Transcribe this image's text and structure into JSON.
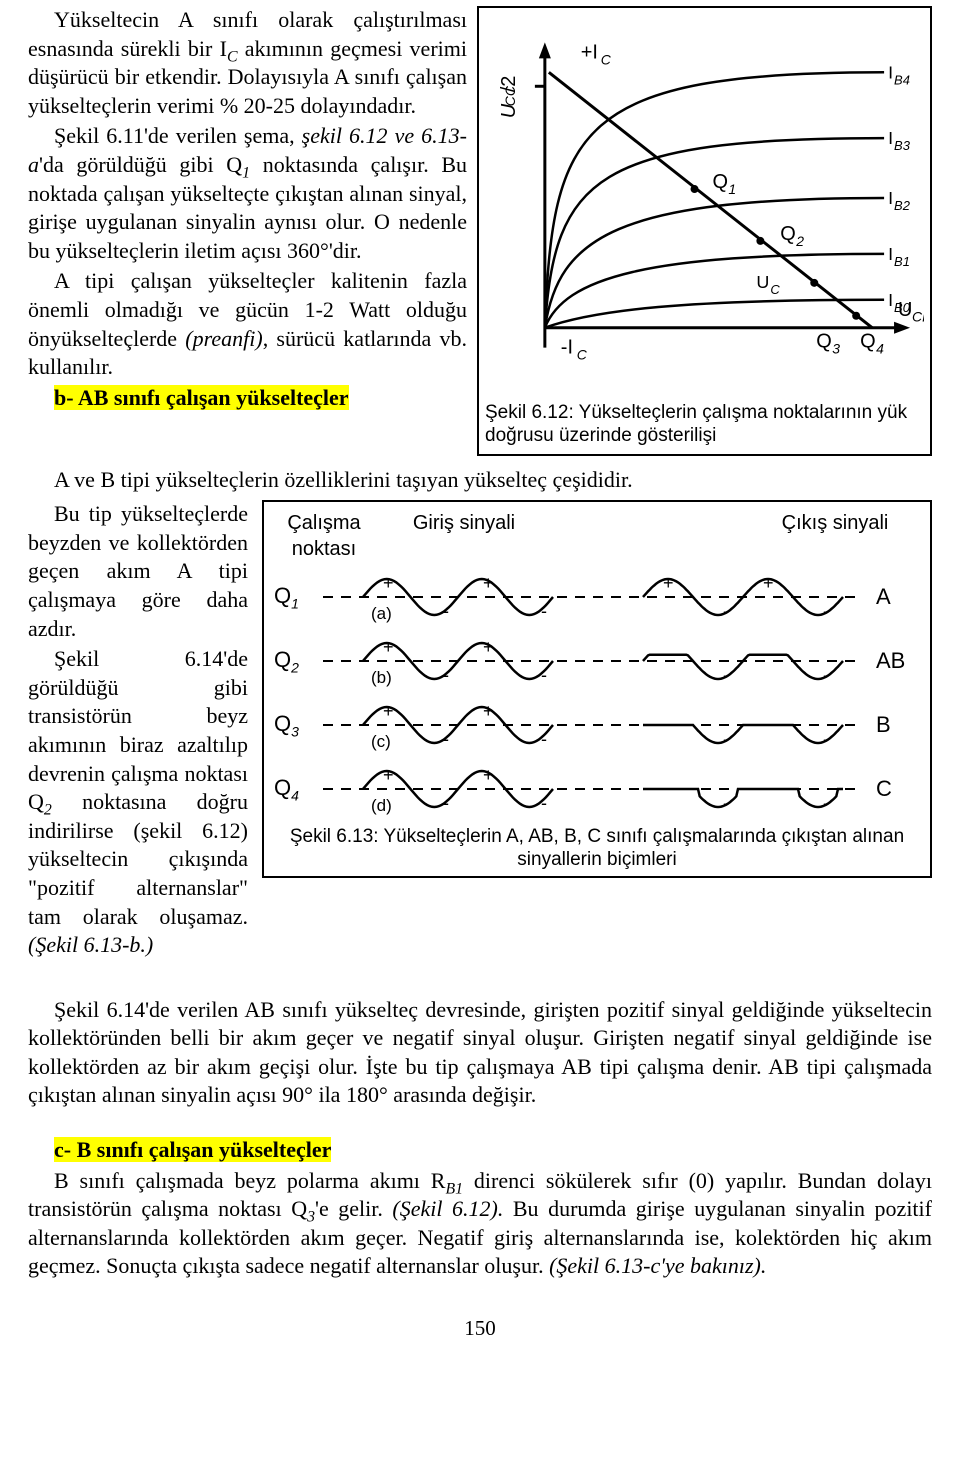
{
  "text": {
    "p1": "Yükseltecin A sınıfı olarak çalıştırılması esnasında sürekli bir I",
    "p1s": "C",
    "p1b": " akımının geçmesi verimi düşürücü bir etkendir. Dolayısıyla A sınıfı çalışan yükselteçlerin verimi % 20-25 dolayındadır.",
    "p2": "Şekil 6.11'de verilen şema, ",
    "p2i": "şekil 6.12 ve 6.13-a",
    "p2b": "'da görüldüğü gibi Q",
    "p2s": "1",
    "p2c": " noktasında çalışır. Bu noktada çalışan yükselteçte çıkıştan alınan sinyal, girişe uygulanan sinyalin aynısı olur. O nedenle bu yükselteçlerin iletim açısı 360°'dir.",
    "p3": "A tipi çalışan yükselteçler kalitenin fazla önemli olmadığı ve gücün 1-2 Watt olduğu önyükselteçlerde ",
    "p3i": "(preanfi)",
    "p3b": ", sürücü katlarında vb. kullanılır.",
    "h1": "b- AB sınıfı çalışan yükselteçler",
    "p4": "A ve B tipi yükselteçlerin özelliklerini taşıyan yükselteç çeşididir.",
    "p5": "Bu tip yükselteçlerde beyzden ve kollektörden geçen akım A tipi çalışmaya göre daha azdır.",
    "p6a": "Şekil 6.14'de görüldüğü gibi transistörün beyz akımının biraz azaltılıp devrenin çalışma noktası Q",
    "p6s": "2",
    "p6b": " noktasına doğru indirilirse (şekil 6.12) yükseltecin çıkışında \"pozitif alternanslar\" tam olarak oluşamaz. ",
    "p6i": "(Şekil 6.13-b.)",
    "p7a": "Şekil 6.14'de verilen AB sınıfı yükselteç devresinde, girişten pozitif sinyal geldiğinde yükseltecin kollektöründen belli bir akım geçer ve negatif sinyal oluşur. Girişten negatif sinyal geldiğinde ise kollektörden az bir akım geçişi olur. İşte bu tip çalışmaya AB tipi çalışma denir. AB tipi çalışmada çıkıştan alınan sinyalin açısı 90° ila 180° arasında değişir.",
    "h2": "c- B sınıfı çalışan yükselteçler",
    "p8a": "B sınıfı çalışmada beyz polarma akımı R",
    "p8s": "B1",
    "p8b": " direnci sökülerek sıfır (0) yapılır. Bundan dolayı transistörün çalışma noktası Q",
    "p8s2": "3",
    "p8c": "'e gelir. ",
    "p8i": "(Şekil 6.12).",
    "p8d": " Bu durumda girişe uygulanan sinyalin pozitif alternanslarında kollektörden akım geçer. Negatif giriş alternanslarında ise, kolektörden hiç akım geçmez. Sonuçta çıkışta sadece negatif alternanslar oluşur. ",
    "p8i2": "(Şekil 6.13-c'ye bakınız).",
    "pagenum": "150"
  },
  "fig612": {
    "y_label": "U",
    "y_label_sub": "CC",
    "y_label_suffix": "/2",
    "top_label": "+I",
    "top_label_sub": "C",
    "bottom_label": "-I",
    "bottom_label_sub": "C",
    "x_label": "U",
    "x_label_sub": "CE",
    "uc_label": "U",
    "uc_sub": "C",
    "q_labels": [
      "Q",
      "Q",
      "Q",
      "Q"
    ],
    "q_subs": [
      "1",
      "2",
      "3",
      "4"
    ],
    "ib_labels": [
      "I",
      "I",
      "I",
      "I",
      "I"
    ],
    "ib_subs": [
      "B4",
      "B3",
      "B2",
      "B1",
      "B0"
    ],
    "caption": "Şekil 6.12: Yükselteçlerin çalışma noktalarının yük doğrusu üzerinde gösterilişi",
    "colors": {
      "stroke": "#000000",
      "bg": "#ffffff",
      "fill": "#000000"
    },
    "line_width": 2
  },
  "fig613": {
    "headers": {
      "col1": "Çalışma noktası",
      "col2": "Giriş sinyali",
      "col3": "Çıkış sinyali"
    },
    "rows": [
      {
        "q": "Q",
        "qsub": "1",
        "letter": "(a)",
        "class": "A",
        "out_type": "full"
      },
      {
        "q": "Q",
        "qsub": "2",
        "letter": "(b)",
        "class": "AB",
        "out_type": "ab"
      },
      {
        "q": "Q",
        "qsub": "3",
        "letter": "(c)",
        "class": "B",
        "out_type": "half"
      },
      {
        "q": "Q",
        "qsub": "4",
        "letter": "(d)",
        "class": "C",
        "out_type": "c"
      }
    ],
    "caption": "Şekil 6.13: Yükselteçlerin A, AB, B, C sınıfı çalışmalarında çıkıştan alınan sinyallerin biçimleri",
    "colors": {
      "stroke": "#000000",
      "dash": "#000000"
    },
    "plus": "+",
    "minus": "-"
  }
}
